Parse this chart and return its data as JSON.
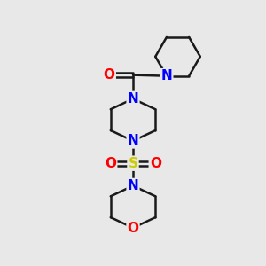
{
  "bg_color": "#e8e8e8",
  "bond_color": "#1a1a1a",
  "N_color": "#0000ff",
  "O_color": "#ff0000",
  "S_color": "#cccc00",
  "line_width": 1.8,
  "font_size_atom": 11,
  "xlim": [
    0,
    10
  ],
  "ylim": [
    0,
    10
  ],
  "figsize": [
    3.0,
    3.0
  ],
  "dpi": 100
}
